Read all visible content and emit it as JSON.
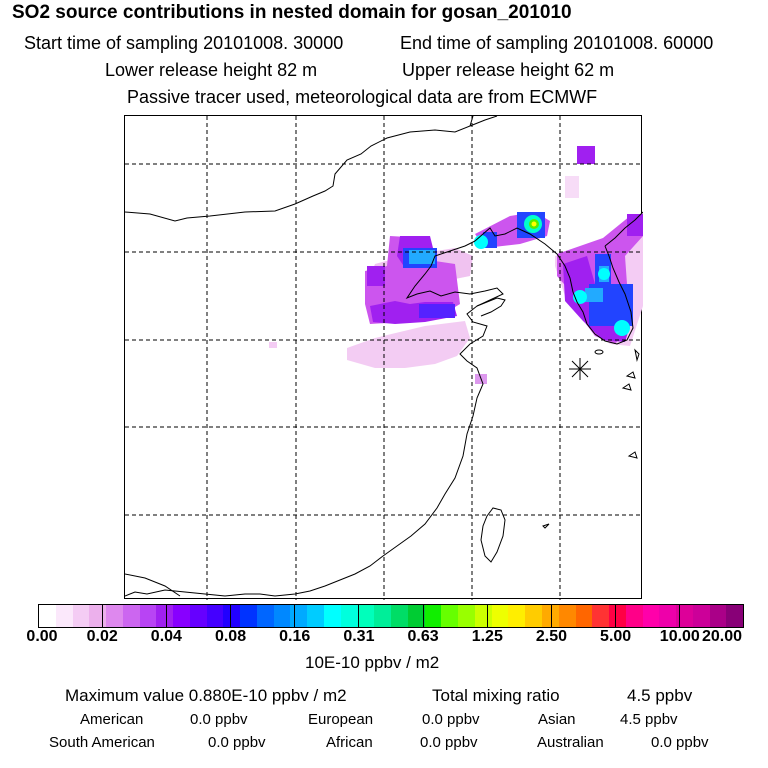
{
  "header": {
    "title": "SO2 source contributions in nested domain for gosan_201010",
    "start_time": "Start time of sampling 20101008. 30000",
    "end_time": "End time of sampling 20101008. 60000",
    "lower_height": "Lower release height   82 m",
    "upper_height": "Upper release height   62 m",
    "note": "Passive tracer used, meteorological data are from ECMWF"
  },
  "colorbar": {
    "ticks": [
      "0.00",
      "0.02",
      "0.04",
      "0.08",
      "0.16",
      "0.31",
      "0.63",
      "1.25",
      "2.50",
      "5.00",
      "10.00",
      "20.00"
    ],
    "units": "10E-10 ppbv / m2",
    "colors": [
      "#ffffff",
      "#fbe8fb",
      "#f4ccf4",
      "#ecb0ec",
      "#de88ee",
      "#cc66f0",
      "#b844f4",
      "#a020f0",
      "#8800ff",
      "#6600ff",
      "#4400ff",
      "#2200ff",
      "#0033ff",
      "#0066ff",
      "#0088ff",
      "#00aaff",
      "#00ccff",
      "#00ffff",
      "#00ffdd",
      "#00ffbb",
      "#00ee99",
      "#00dd66",
      "#00cc33",
      "#11ee00",
      "#66ff00",
      "#99ff00",
      "#ccff00",
      "#eeff00",
      "#ffee00",
      "#ffcc00",
      "#ffaa00",
      "#ff8800",
      "#ff6600",
      "#ff3333",
      "#ff0044",
      "#ff0088",
      "#ff00aa",
      "#ee00aa",
      "#dd0099",
      "#cc0099",
      "#aa0088",
      "#880077"
    ]
  },
  "summary": {
    "max_value": "Maximum value  0.880E-10 ppbv / m2",
    "total_label": "Total mixing ratio",
    "total_value": "4.5 ppbv",
    "regions": [
      {
        "name": "American",
        "value": "0.0 ppbv"
      },
      {
        "name": "European",
        "value": "0.0 ppbv"
      },
      {
        "name": "Asian",
        "value": "4.5 ppbv"
      },
      {
        "name": "South American",
        "value": "0.0 ppbv"
      },
      {
        "name": "African",
        "value": "0.0 ppbv"
      },
      {
        "name": "Australian",
        "value": "0.0 ppbv"
      }
    ]
  },
  "map": {
    "receptor_marker": "asterisk-star",
    "palette": {
      "light": "#f2c6f2",
      "mid": "#cc55ee",
      "purple": "#a020f0",
      "blue": "#2244ff",
      "skyblue": "#22aaff",
      "cyan": "#00ffff",
      "green": "#55ee00",
      "yellow": "#ffff00"
    }
  }
}
